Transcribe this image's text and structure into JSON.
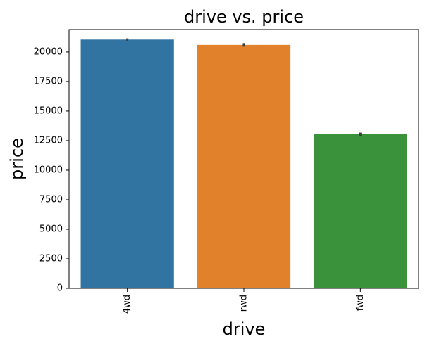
{
  "chart_data": {
    "type": "bar",
    "title": "drive vs. price",
    "xlabel": "drive",
    "ylabel": "price",
    "categories": [
      "4wd",
      "rwd",
      "fwd"
    ],
    "values": [
      21050,
      20600,
      13050
    ],
    "error_bars": [
      {
        "low": 20950,
        "high": 21150
      },
      {
        "low": 20450,
        "high": 20750
      },
      {
        "low": 12900,
        "high": 13180
      }
    ],
    "colors": [
      "#3274a1",
      "#e1812c",
      "#3a923a"
    ],
    "ylim": [
      0,
      21900
    ],
    "yticks": [
      0,
      2500,
      5000,
      7500,
      10000,
      12500,
      15000,
      17500,
      20000
    ],
    "xtick_rotation": "vertical",
    "grid": false,
    "legend": "none"
  }
}
